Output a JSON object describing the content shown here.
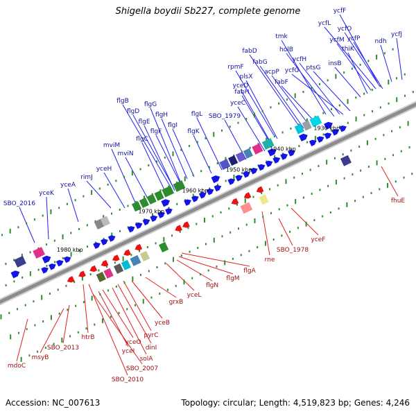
{
  "title": "Shigella boydii Sb227, complete genome",
  "footer": {
    "accession": "Accession: NC_007613",
    "stats": "Topology: circular; Length: 4,519,823 bp; Genes: 4,246"
  },
  "colors": {
    "backbone": "#8c8c8c",
    "backbone_edge": "#cfcfcf",
    "forward_gene": "#1414e6",
    "reverse_gene": "#e61414",
    "forward_label_line": "#2020f0",
    "reverse_label_line": "#e02020",
    "ticks": "#2e8b2e"
  },
  "kbp_labels": [
    "1930 kbp",
    "1940 kbp",
    "1950 kbp",
    "1960 kbp",
    "1970 kbp",
    "1980 kbp"
  ],
  "forward_labels": [
    "ycfF",
    "ycfL",
    "ycfO",
    "tmk",
    "ycfM",
    "ycfP",
    "ycfJ",
    "fabD",
    "holB",
    "thiK",
    "ndh",
    "fabG",
    "ycfH",
    "rpmF",
    "acpP",
    "ycfG",
    "plsX",
    "fabF",
    "ptsG",
    "insB",
    "yceD",
    "fabH",
    "yceC",
    "flgB",
    "flgG",
    "flgD",
    "flgH",
    "flgE",
    "flgI",
    "flgF",
    "flgL",
    "SBO_1979",
    "flgC",
    "flgK",
    "mviM",
    "mviN",
    "yceH",
    "rimJ",
    "yceA",
    "yceK",
    "SBO_2016"
  ],
  "reverse_labels": [
    "fhuE",
    "yceF",
    "SBO_1978",
    "rne",
    "flgA",
    "flgM",
    "flgN",
    "yceL",
    "grxB",
    "yceB",
    "pyrC",
    "dinI",
    "solA",
    "yceO",
    "yceI",
    "SBO_2007",
    "SBO_2010",
    "htrB",
    "SBO_2013",
    "msyB",
    "mdoC"
  ]
}
